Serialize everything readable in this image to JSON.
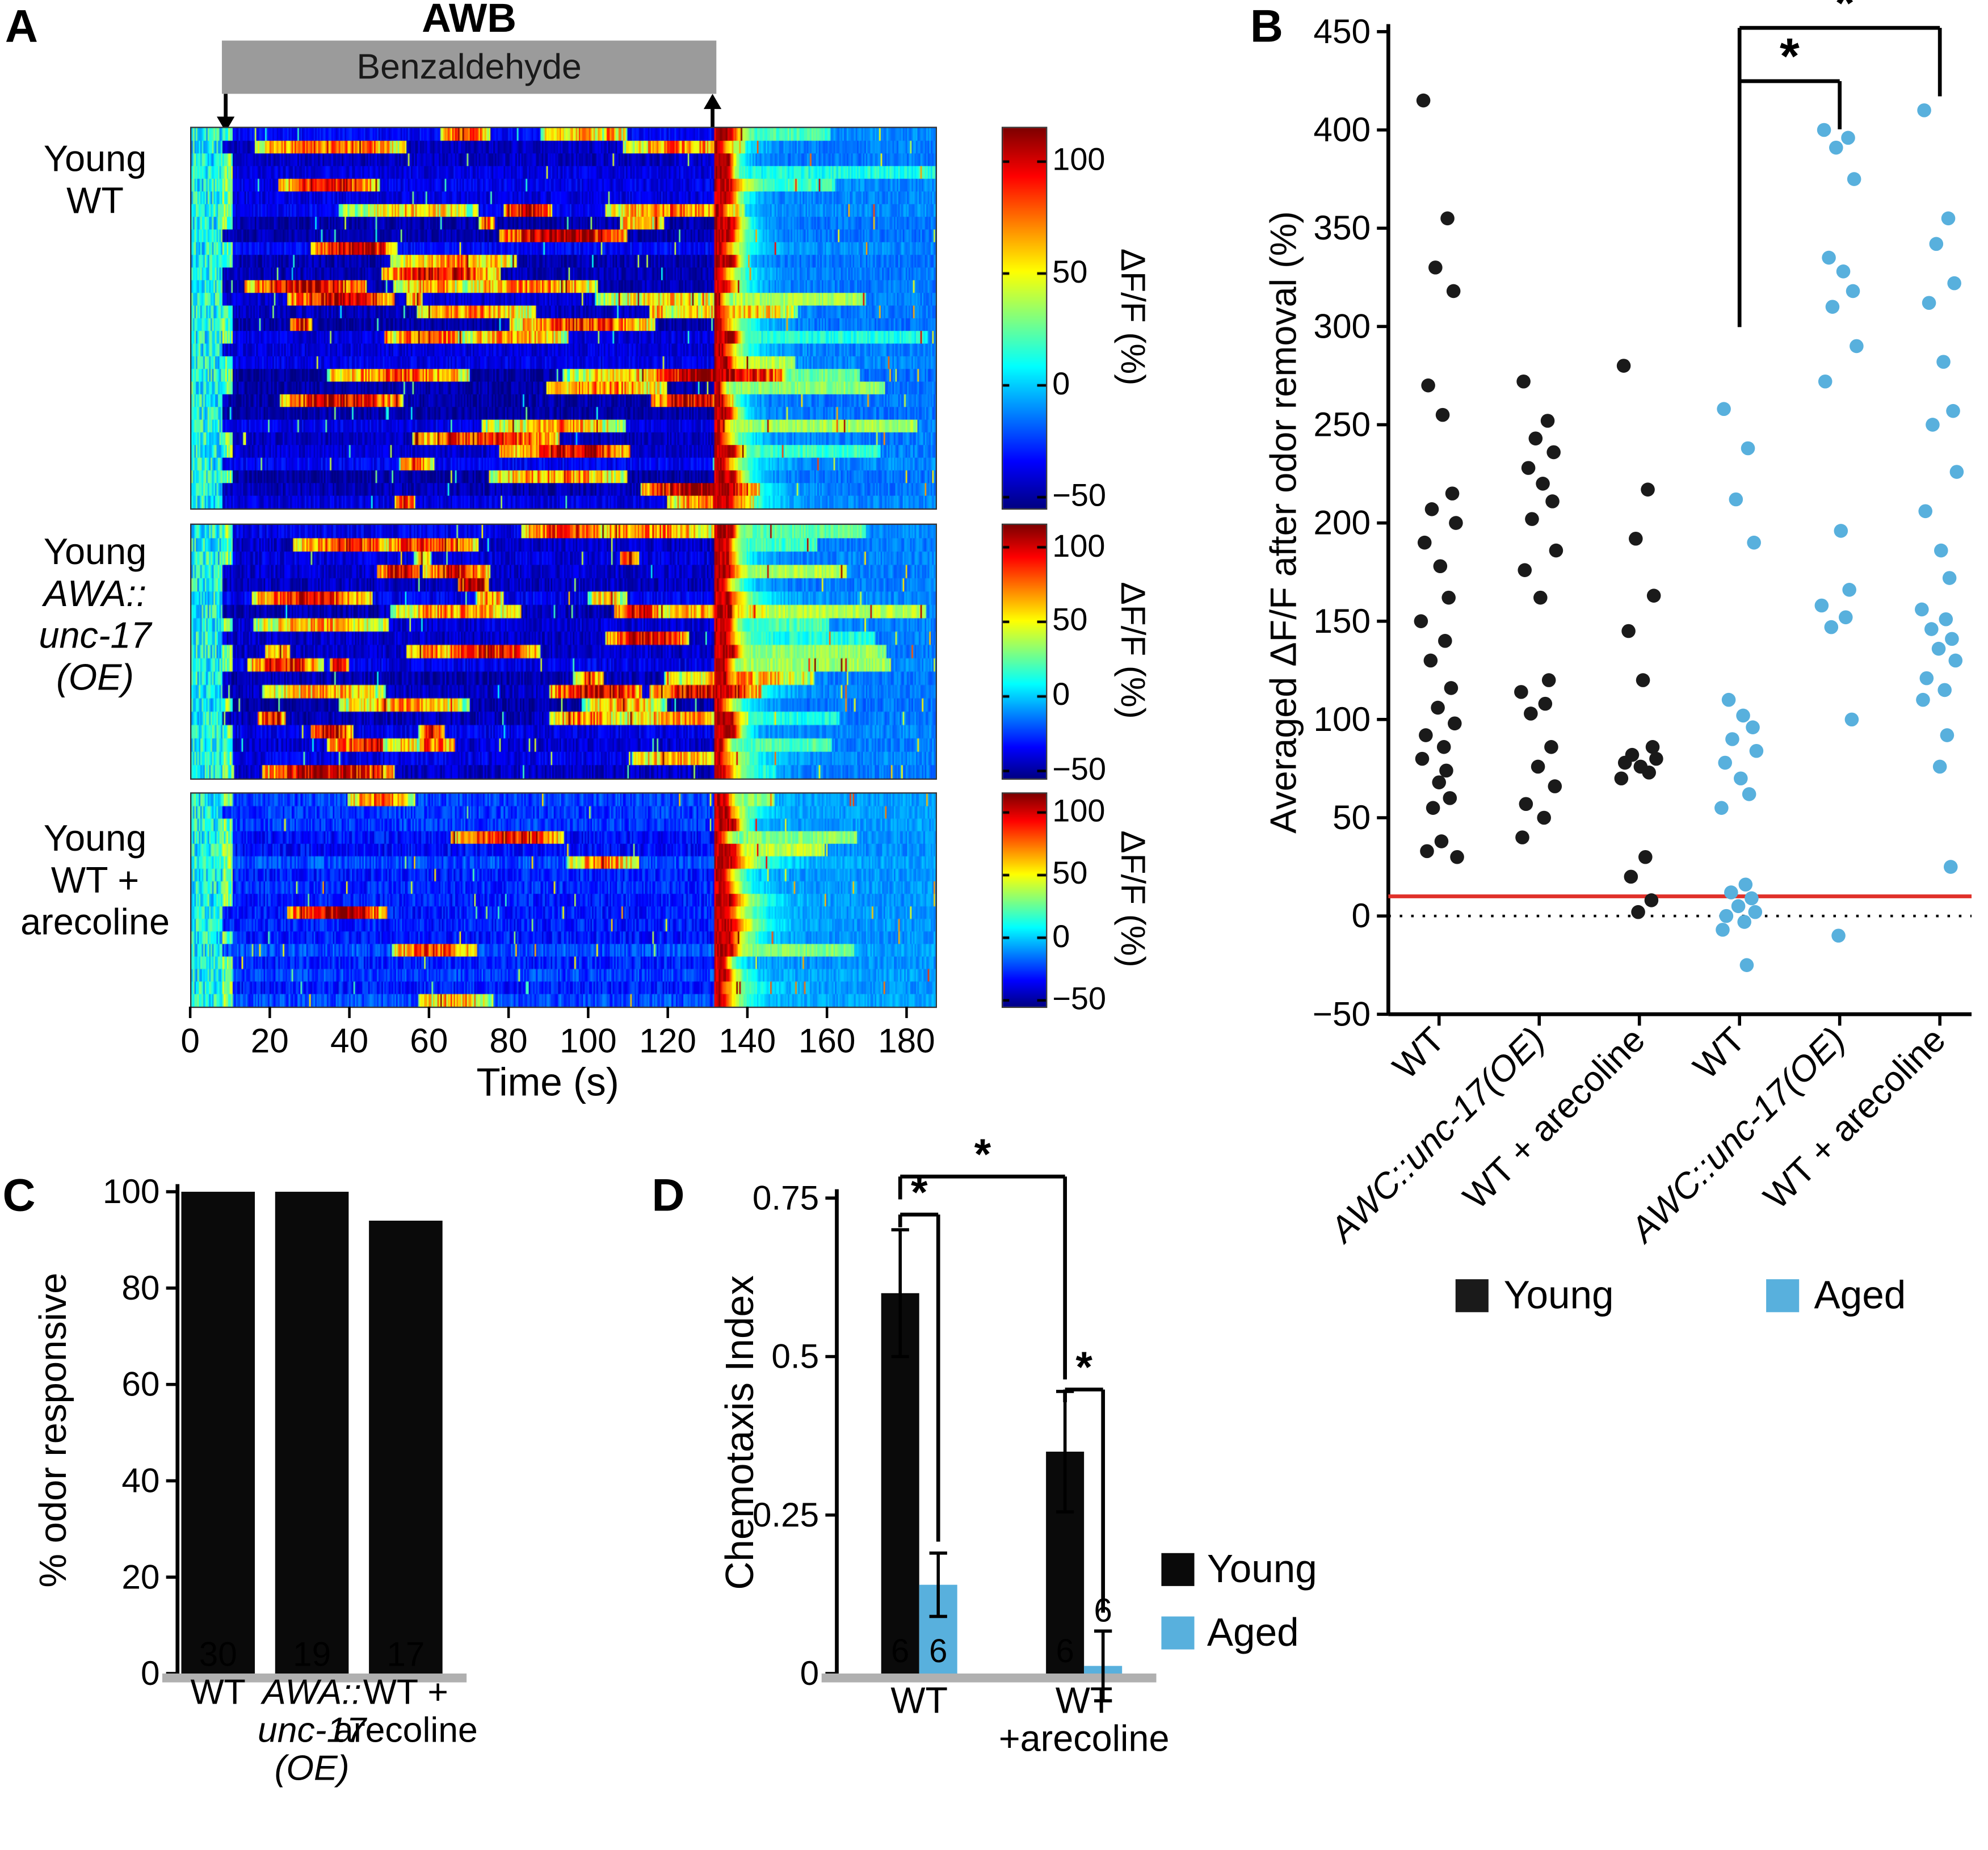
{
  "figure": {
    "panel_labels": {
      "A": "A",
      "B": "B",
      "C": "C",
      "D": "D"
    }
  },
  "chart_data": [
    {
      "id": "A",
      "type": "heatmap",
      "title": "AWB",
      "stimulus_label": "Benzaldehyde",
      "xlabel": "Time (s)",
      "x_ticks": [
        0,
        20,
        40,
        60,
        80,
        100,
        120,
        140,
        160,
        180
      ],
      "time_range_s": [
        0,
        187
      ],
      "stimulus_window_s": [
        8,
        132
      ],
      "colorbar": {
        "label": "ΔF/F (%)",
        "ticks": [
          100,
          50,
          0,
          -50
        ],
        "value_range": [
          -55,
          115
        ]
      },
      "heatmaps": [
        {
          "label_lines": [
            {
              "text": "Young",
              "italic": false
            },
            {
              "text": "WT",
              "italic": false
            }
          ],
          "rows": 30,
          "seed": 7,
          "activity": "mixed"
        },
        {
          "label_lines": [
            {
              "text": "Young",
              "italic": false
            },
            {
              "text": "AWA::",
              "italic": true
            },
            {
              "text": "unc-17",
              "italic": true
            },
            {
              "text": "(OE)",
              "italic": true
            }
          ],
          "rows": 19,
          "seed": 19,
          "activity": "high"
        },
        {
          "label_lines": [
            {
              "text": "Young",
              "italic": false
            },
            {
              "text": "WT +",
              "italic": false
            },
            {
              "text": "arecoline",
              "italic": false
            }
          ],
          "rows": 17,
          "seed": 29,
          "activity": "low"
        }
      ]
    },
    {
      "id": "B",
      "type": "scatter",
      "ylabel": "Averaged ΔF/F after odor removal (%)",
      "ylim": [
        -50,
        450
      ],
      "ytick_step": 50,
      "reference_lines": [
        {
          "y": 10,
          "style": "solid",
          "color": "#e0312a"
        },
        {
          "y": 0,
          "style": "dotted",
          "color": "#000000"
        }
      ],
      "series_colors": {
        "Young": "#1a1a1a",
        "Aged": "#58b0dd"
      },
      "groups": [
        {
          "label": "WT",
          "italic": false,
          "series": "Young",
          "values": [
            415,
            355,
            330,
            318,
            270,
            255,
            215,
            207,
            200,
            190,
            178,
            162,
            150,
            140,
            130,
            116,
            106,
            98,
            92,
            86,
            80,
            74,
            68,
            60,
            55,
            38,
            33,
            30
          ]
        },
        {
          "label": "AWC::unc-17(OE)",
          "italic": true,
          "series": "Young",
          "values": [
            272,
            252,
            243,
            236,
            228,
            220,
            211,
            202,
            186,
            176,
            162,
            120,
            114,
            108,
            103,
            86,
            76,
            66,
            57,
            50,
            40
          ]
        },
        {
          "label": "WT + arecoline",
          "italic": false,
          "series": "Young",
          "values": [
            280,
            217,
            192,
            163,
            145,
            120,
            86,
            82,
            80,
            78,
            76,
            73,
            70,
            30,
            20,
            8,
            2
          ]
        },
        {
          "label": "WT",
          "italic": false,
          "series": "Aged",
          "values": [
            258,
            238,
            212,
            190,
            110,
            102,
            96,
            90,
            84,
            78,
            70,
            62,
            55,
            16,
            12,
            9,
            5,
            2,
            0,
            -3,
            -7,
            -25
          ]
        },
        {
          "label": "AWC::unc-17(OE)",
          "italic": true,
          "series": "Aged",
          "values": [
            400,
            396,
            391,
            375,
            335,
            328,
            318,
            310,
            290,
            272,
            196,
            166,
            158,
            152,
            147,
            100,
            -10
          ]
        },
        {
          "label": "WT + arecoline",
          "italic": false,
          "series": "Aged",
          "values": [
            410,
            355,
            342,
            322,
            312,
            282,
            257,
            250,
            226,
            206,
            186,
            172,
            156,
            151,
            146,
            141,
            136,
            130,
            121,
            115,
            110,
            92,
            76,
            25
          ]
        }
      ],
      "significance": [
        {
          "from": 3,
          "to": 4,
          "label": "*"
        },
        {
          "from": 3,
          "to": 5,
          "label": "*"
        }
      ],
      "legend": [
        {
          "label": "Young",
          "color": "#1a1a1a"
        },
        {
          "label": "Aged",
          "color": "#58b0dd"
        }
      ]
    },
    {
      "id": "C",
      "type": "bar",
      "ylabel": "% odor responsive",
      "ylim": [
        0,
        100
      ],
      "yticks": [
        0,
        20,
        40,
        60,
        80,
        100
      ],
      "bar_color": "#0a0a0a",
      "bars": [
        {
          "label_lines": [
            {
              "text": "WT",
              "italic": false
            }
          ],
          "value": 100,
          "n": "30"
        },
        {
          "label_lines": [
            {
              "text": "AWA::",
              "italic": true
            },
            {
              "text": "unc-17",
              "italic": true
            },
            {
              "text": "(OE)",
              "italic": true
            }
          ],
          "value": 100,
          "n": "19"
        },
        {
          "label_lines": [
            {
              "text": "WT +",
              "italic": false
            },
            {
              "text": "arecoline",
              "italic": false
            }
          ],
          "value": 94,
          "n": "17"
        }
      ]
    },
    {
      "id": "D",
      "type": "grouped_bar",
      "ylabel": "Chemotaxis Index",
      "ylim": [
        0,
        0.75
      ],
      "yticks": [
        0,
        0.25,
        0.5,
        0.75
      ],
      "series_colors": {
        "Young": "#0a0a0a",
        "Aged": "#58b0dd"
      },
      "groups": [
        {
          "label_lines": [
            "WT"
          ],
          "bars": [
            {
              "series": "Young",
              "value": 0.6,
              "error": 0.1,
              "n": "6"
            },
            {
              "series": "Aged",
              "value": 0.14,
              "error": 0.05,
              "n": "6"
            }
          ]
        },
        {
          "label_lines": [
            "WT",
            "+arecoline"
          ],
          "bars": [
            {
              "series": "Young",
              "value": 0.35,
              "error": 0.095,
              "n": "6"
            },
            {
              "series": "Aged",
              "value": 0.012,
              "error": 0.055,
              "n": "6"
            }
          ]
        }
      ],
      "significance": [
        {
          "a": "WT/Young",
          "b": "WT/Aged",
          "label": "*"
        },
        {
          "a": "WT/Young",
          "b": "WT +arecoline/Young",
          "label": "*"
        },
        {
          "a": "WT +arecoline/Young",
          "b": "WT +arecoline/Aged",
          "label": "*"
        }
      ],
      "legend": [
        {
          "label": "Young",
          "color": "#0a0a0a"
        },
        {
          "label": "Aged",
          "color": "#58b0dd"
        }
      ]
    }
  ]
}
